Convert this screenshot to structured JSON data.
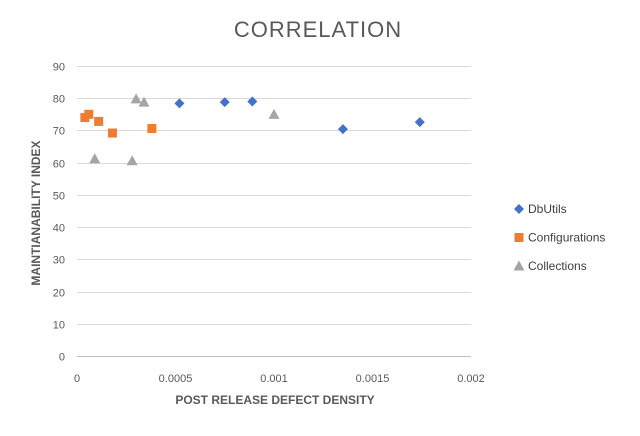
{
  "chart_data": {
    "type": "scatter",
    "title": "CORRELATION",
    "xlabel": "POST RELEASE DEFECT DENSITY",
    "ylabel": "MAINTIANABILITY INDEX",
    "xlim": [
      0,
      0.002
    ],
    "ylim": [
      0,
      90
    ],
    "x_ticks": [
      "0",
      "0.0005",
      "0.001",
      "0.0015",
      "0.002"
    ],
    "y_ticks": [
      "0",
      "10",
      "20",
      "30",
      "40",
      "50",
      "60",
      "70",
      "80",
      "90"
    ],
    "grid": true,
    "legend_position": "right",
    "series": [
      {
        "name": "DbUtils",
        "marker": "diamond",
        "color": "#4472C4",
        "points": [
          {
            "x": 0.00052,
            "y": 78.4
          },
          {
            "x": 0.00075,
            "y": 78.8
          },
          {
            "x": 0.00089,
            "y": 79.0
          },
          {
            "x": 0.00135,
            "y": 70.4
          },
          {
            "x": 0.00174,
            "y": 72.6
          }
        ]
      },
      {
        "name": "Configurations",
        "marker": "square",
        "color": "#ED7D31",
        "points": [
          {
            "x": 4e-05,
            "y": 74.0
          },
          {
            "x": 6e-05,
            "y": 75.0
          },
          {
            "x": 0.00011,
            "y": 72.8
          },
          {
            "x": 0.00018,
            "y": 69.2
          },
          {
            "x": 0.00038,
            "y": 70.6
          }
        ]
      },
      {
        "name": "Collections",
        "marker": "triangle",
        "color": "#A5A5A5",
        "points": [
          {
            "x": 9e-05,
            "y": 61.2
          },
          {
            "x": 0.00028,
            "y": 60.6
          },
          {
            "x": 0.0003,
            "y": 79.8
          },
          {
            "x": 0.00034,
            "y": 78.8
          },
          {
            "x": 0.001,
            "y": 75.0
          }
        ]
      }
    ]
  }
}
